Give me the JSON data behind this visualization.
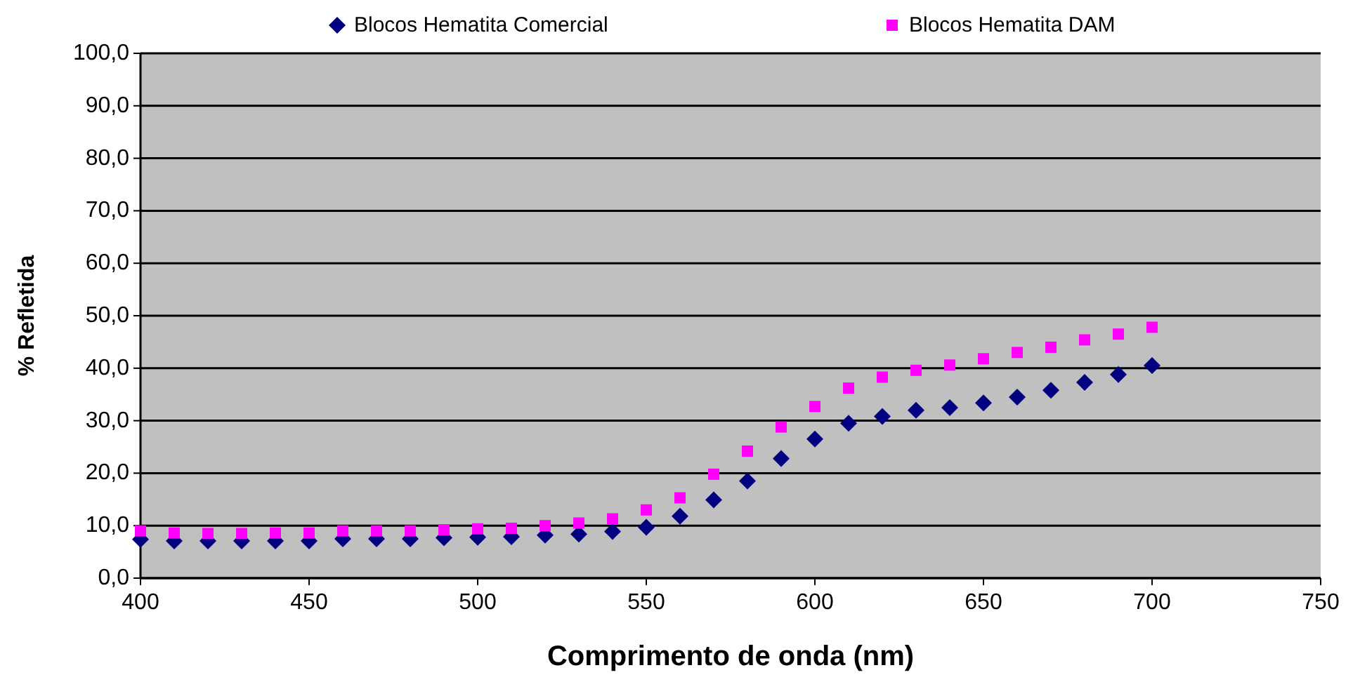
{
  "chart_data": {
    "type": "scatter",
    "xlabel": "Comprimento de onda (nm)",
    "ylabel": "% Refletida",
    "x": [
      400,
      410,
      420,
      430,
      440,
      450,
      460,
      470,
      480,
      490,
      500,
      510,
      520,
      530,
      540,
      550,
      560,
      570,
      580,
      590,
      600,
      610,
      620,
      630,
      640,
      650,
      660,
      670,
      680,
      690,
      700
    ],
    "series": [
      {
        "name": "Blocos Hematita Comercial",
        "color": "#000080",
        "marker": "diamond",
        "values": [
          7.4,
          7.1,
          7.1,
          7.1,
          7.1,
          7.1,
          7.5,
          7.5,
          7.5,
          7.7,
          7.8,
          7.9,
          8.2,
          8.4,
          8.9,
          9.7,
          11.8,
          14.9,
          18.5,
          22.8,
          26.5,
          29.5,
          30.8,
          32.0,
          32.5,
          33.4,
          34.5,
          35.8,
          37.3,
          38.8,
          40.5
        ]
      },
      {
        "name": "Blocos Hematita DAM",
        "color": "#ff00ff",
        "marker": "square",
        "values": [
          9.0,
          8.6,
          8.5,
          8.5,
          8.6,
          8.6,
          9.0,
          9.0,
          9.0,
          9.2,
          9.4,
          9.5,
          10.0,
          10.5,
          11.3,
          13.0,
          15.3,
          19.8,
          24.2,
          28.8,
          32.7,
          36.2,
          38.3,
          39.6,
          40.6,
          41.8,
          43.0,
          44.0,
          45.4,
          46.5,
          47.8
        ]
      }
    ],
    "xlim": [
      400,
      750
    ],
    "xticks": [
      400,
      450,
      500,
      550,
      600,
      650,
      700,
      750
    ],
    "ylim": [
      0,
      100
    ],
    "yticks": [
      {
        "value": 0,
        "label": "0,0"
      },
      {
        "value": 10,
        "label": "10,0"
      },
      {
        "value": 20,
        "label": "20,0"
      },
      {
        "value": 30,
        "label": "30,0"
      },
      {
        "value": 40,
        "label": "40,0"
      },
      {
        "value": 50,
        "label": "50,0"
      },
      {
        "value": 60,
        "label": "60,0"
      },
      {
        "value": 70,
        "label": "70,0"
      },
      {
        "value": 80,
        "label": "80,0"
      },
      {
        "value": 90,
        "label": "90,0"
      },
      {
        "value": 100,
        "label": "100,0"
      }
    ],
    "grid": "y",
    "legend": "top"
  }
}
